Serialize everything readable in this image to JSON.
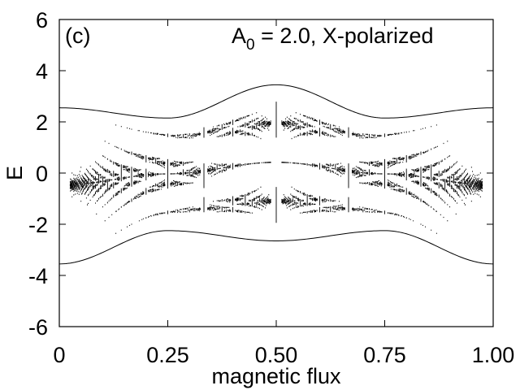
{
  "chart_data": {
    "type": "scatter",
    "panel_label": "(c)",
    "annotation": {
      "prefix": "A",
      "subscript": "0",
      "suffix": " = 2.0, X-polarized"
    },
    "xlabel": "magnetic flux",
    "ylabel": "E",
    "xlim": [
      0,
      1
    ],
    "ylim": [
      -6,
      6
    ],
    "x_ticks": [
      {
        "value": 0,
        "label": "0"
      },
      {
        "value": 0.25,
        "label": "0.25"
      },
      {
        "value": 0.5,
        "label": "0.50"
      },
      {
        "value": 0.75,
        "label": "0.75"
      },
      {
        "value": 1.0,
        "label": "1.00"
      }
    ],
    "y_ticks": [
      {
        "value": 6,
        "label": "6"
      },
      {
        "value": 4,
        "label": "4"
      },
      {
        "value": 2,
        "label": "2"
      },
      {
        "value": 0,
        "label": "0"
      },
      {
        "value": -2,
        "label": "-2"
      },
      {
        "value": -4,
        "label": "-4"
      },
      {
        "value": -6,
        "label": "-6"
      }
    ],
    "band_edges": {
      "description_free": true,
      "upper_points": [
        [
          0,
          2.55
        ],
        [
          0.25,
          2.15
        ],
        [
          0.5,
          3.45
        ],
        [
          0.75,
          2.15
        ],
        [
          1.0,
          2.55
        ]
      ],
      "lower_points": [
        [
          0,
          -3.55
        ],
        [
          0.25,
          -2.25
        ],
        [
          0.5,
          -2.65
        ],
        [
          0.75,
          -2.25
        ],
        [
          1.0,
          -3.55
        ]
      ]
    },
    "grid": false,
    "legend": "none",
    "point_color": "#000000"
  }
}
